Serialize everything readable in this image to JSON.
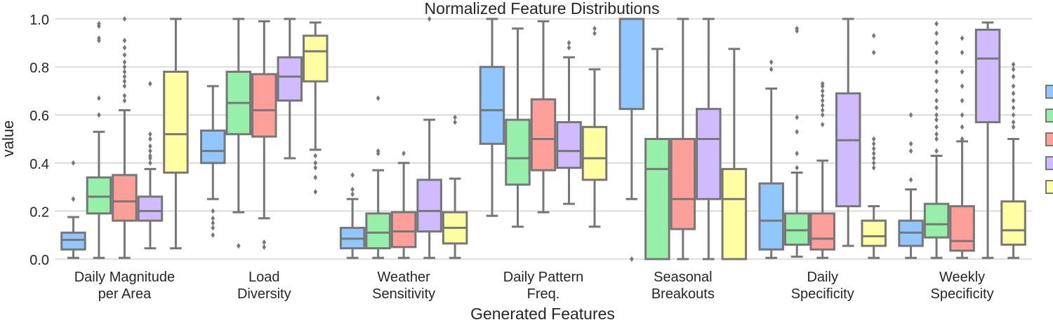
{
  "chart_data": {
    "type": "box",
    "title": "Normalized Feature Distributions",
    "xlabel": "Generated Features",
    "ylabel": "value",
    "ylim": [
      0.0,
      1.0
    ],
    "yticks": [
      "0.0",
      "0.2",
      "0.4",
      "0.6",
      "0.8",
      "1.0"
    ],
    "grid": true,
    "legend": {
      "placement": "right",
      "entries_visible": false
    },
    "palette": [
      "#92c6ff",
      "#97f0aa",
      "#ff9f9a",
      "#d0bbff",
      "#fffea3"
    ],
    "box_edge_color": "#777777",
    "categories": [
      [
        "Daily Magnitude",
        "per Area"
      ],
      [
        "Load",
        "Diversity"
      ],
      [
        "Weather",
        "Sensitivity"
      ],
      [
        "Daily Pattern",
        "Freq."
      ],
      [
        "Seasonal",
        "Breakouts"
      ],
      [
        "Daily",
        "Specificity"
      ],
      [
        "Weekly",
        "Specificity"
      ]
    ],
    "groups": [
      {
        "category": "Daily Magnitude per Area",
        "boxes": [
          {
            "q1": 0.04,
            "median": 0.08,
            "q3": 0.11,
            "whisker_low": 0.005,
            "whisker_high": 0.175,
            "outliers": [
              0.25,
              0.4
            ]
          },
          {
            "q1": 0.19,
            "median": 0.26,
            "q3": 0.34,
            "whisker_low": 0.005,
            "whisker_high": 0.53,
            "outliers": [
              0.6,
              0.67,
              0.91,
              0.92,
              0.97,
              0.98
            ]
          },
          {
            "q1": 0.16,
            "median": 0.24,
            "q3": 0.35,
            "whisker_low": 0.005,
            "whisker_high": 0.62,
            "outliers": [
              0.66,
              0.68,
              0.72,
              0.74,
              0.76,
              0.78,
              0.8,
              0.82,
              0.85,
              0.88,
              0.91,
              1.0
            ]
          },
          {
            "q1": 0.16,
            "median": 0.2,
            "q3": 0.26,
            "whisker_low": 0.045,
            "whisker_high": 0.375,
            "outliers": [
              0.4,
              0.42,
              0.43,
              0.45,
              0.47,
              0.5,
              0.52,
              0.73
            ]
          },
          {
            "q1": 0.36,
            "median": 0.52,
            "q3": 0.78,
            "whisker_low": 0.045,
            "whisker_high": 1.0,
            "outliers": []
          }
        ]
      },
      {
        "category": "Load Diversity",
        "boxes": [
          {
            "q1": 0.4,
            "median": 0.45,
            "q3": 0.535,
            "whisker_low": 0.25,
            "whisker_high": 0.72,
            "outliers": [
              0.1,
              0.13,
              0.15,
              0.17,
              0.2
            ]
          },
          {
            "q1": 0.52,
            "median": 0.65,
            "q3": 0.78,
            "whisker_low": 0.195,
            "whisker_high": 1.0,
            "outliers": [
              0.055
            ]
          },
          {
            "q1": 0.51,
            "median": 0.62,
            "q3": 0.77,
            "whisker_low": 0.17,
            "whisker_high": 0.99,
            "outliers": [
              0.05,
              0.07
            ]
          },
          {
            "q1": 0.66,
            "median": 0.76,
            "q3": 0.84,
            "whisker_low": 0.42,
            "whisker_high": 1.0,
            "outliers": []
          },
          {
            "q1": 0.74,
            "median": 0.865,
            "q3": 0.93,
            "whisker_low": 0.455,
            "whisker_high": 0.985,
            "outliers": [
              0.28,
              0.34,
              0.38,
              0.4,
              0.43
            ]
          }
        ]
      },
      {
        "category": "Weather Sensitivity",
        "boxes": [
          {
            "q1": 0.045,
            "median": 0.085,
            "q3": 0.13,
            "whisker_low": 0.005,
            "whisker_high": 0.25,
            "outliers": [
              0.27,
              0.29,
              0.35
            ]
          },
          {
            "q1": 0.045,
            "median": 0.11,
            "q3": 0.19,
            "whisker_low": 0.005,
            "whisker_high": 0.37,
            "outliers": [
              0.44,
              0.45,
              0.67
            ]
          },
          {
            "q1": 0.05,
            "median": 0.115,
            "q3": 0.195,
            "whisker_low": 0.005,
            "whisker_high": 0.4,
            "outliers": [
              0.44
            ]
          },
          {
            "q1": 0.115,
            "median": 0.2,
            "q3": 0.33,
            "whisker_low": 0.005,
            "whisker_high": 0.58,
            "outliers": [
              1.0
            ]
          },
          {
            "q1": 0.065,
            "median": 0.13,
            "q3": 0.195,
            "whisker_low": 0.005,
            "whisker_high": 0.335,
            "outliers": [
              0.57,
              0.59
            ]
          }
        ]
      },
      {
        "category": "Daily Pattern Freq.",
        "boxes": [
          {
            "q1": 0.48,
            "median": 0.62,
            "q3": 0.8,
            "whisker_low": 0.18,
            "whisker_high": 1.0,
            "outliers": []
          },
          {
            "q1": 0.31,
            "median": 0.42,
            "q3": 0.58,
            "whisker_low": 0.135,
            "whisker_high": 0.96,
            "outliers": []
          },
          {
            "q1": 0.37,
            "median": 0.5,
            "q3": 0.665,
            "whisker_low": 0.195,
            "whisker_high": 0.99,
            "outliers": []
          },
          {
            "q1": 0.38,
            "median": 0.45,
            "q3": 0.57,
            "whisker_low": 0.23,
            "whisker_high": 0.84,
            "outliers": [
              0.88,
              0.9
            ]
          },
          {
            "q1": 0.33,
            "median": 0.42,
            "q3": 0.55,
            "whisker_low": 0.135,
            "whisker_high": 0.79,
            "outliers": [
              0.94,
              0.96
            ]
          }
        ]
      },
      {
        "category": "Seasonal Breakouts",
        "boxes": [
          {
            "q1": 0.625,
            "median": 1.0,
            "q3": 1.0,
            "whisker_low": 0.25,
            "whisker_high": 1.0,
            "outliers": [
              0.0
            ]
          },
          {
            "q1": 0.0,
            "median": 0.375,
            "q3": 0.5,
            "whisker_low": 0.0,
            "whisker_high": 0.875,
            "outliers": []
          },
          {
            "q1": 0.125,
            "median": 0.25,
            "q3": 0.5,
            "whisker_low": 0.0,
            "whisker_high": 1.0,
            "outliers": []
          },
          {
            "q1": 0.25,
            "median": 0.5,
            "q3": 0.625,
            "whisker_low": 0.0,
            "whisker_high": 1.0,
            "outliers": []
          },
          {
            "q1": 0.0,
            "median": 0.25,
            "q3": 0.375,
            "whisker_low": 0.0,
            "whisker_high": 0.875,
            "outliers": []
          }
        ]
      },
      {
        "category": "Daily Specificity",
        "boxes": [
          {
            "q1": 0.04,
            "median": 0.16,
            "q3": 0.315,
            "whisker_low": 0.005,
            "whisker_high": 0.71,
            "outliers": [
              0.79,
              0.82
            ]
          },
          {
            "q1": 0.06,
            "median": 0.12,
            "q3": 0.19,
            "whisker_low": 0.01,
            "whisker_high": 0.36,
            "outliers": [
              0.38,
              0.44,
              0.53,
              0.59,
              0.95,
              0.96
            ]
          },
          {
            "q1": 0.04,
            "median": 0.085,
            "q3": 0.19,
            "whisker_low": 0.005,
            "whisker_high": 0.41,
            "outliers": [
              0.56,
              0.6,
              0.62,
              0.64,
              0.66,
              0.68,
              0.7,
              0.72,
              0.73
            ]
          },
          {
            "q1": 0.22,
            "median": 0.495,
            "q3": 0.69,
            "whisker_low": 0.055,
            "whisker_high": 1.0,
            "outliers": []
          },
          {
            "q1": 0.055,
            "median": 0.095,
            "q3": 0.16,
            "whisker_low": 0.005,
            "whisker_high": 0.22,
            "outliers": [
              0.38,
              0.4,
              0.42,
              0.44,
              0.46,
              0.48,
              0.5,
              0.86,
              0.93
            ]
          }
        ]
      },
      {
        "category": "Weekly Specificity",
        "boxes": [
          {
            "q1": 0.055,
            "median": 0.11,
            "q3": 0.16,
            "whisker_low": 0.005,
            "whisker_high": 0.29,
            "outliers": [
              0.33,
              0.45,
              0.48,
              0.6
            ]
          },
          {
            "q1": 0.09,
            "median": 0.145,
            "q3": 0.23,
            "whisker_low": 0.005,
            "whisker_high": 0.43,
            "outliers": [
              0.45,
              0.5,
              0.52,
              0.55,
              0.58,
              0.6,
              0.63,
              0.66,
              0.7,
              0.74,
              0.78,
              0.82,
              0.86,
              0.9,
              0.94,
              0.98
            ]
          },
          {
            "q1": 0.035,
            "median": 0.075,
            "q3": 0.22,
            "whisker_low": 0.005,
            "whisker_high": 0.49,
            "outliers": [
              0.5,
              0.55,
              0.6,
              0.66,
              0.72,
              0.78,
              0.86,
              0.92
            ]
          },
          {
            "q1": 0.57,
            "median": 0.835,
            "q3": 0.955,
            "whisker_low": 0.005,
            "whisker_high": 0.985,
            "outliers": []
          },
          {
            "q1": 0.06,
            "median": 0.12,
            "q3": 0.24,
            "whisker_low": 0.005,
            "whisker_high": 0.5,
            "outliers": [
              0.55,
              0.57,
              0.6,
              0.63,
              0.66,
              0.69,
              0.72,
              0.76,
              0.79,
              0.81
            ]
          }
        ]
      }
    ]
  }
}
